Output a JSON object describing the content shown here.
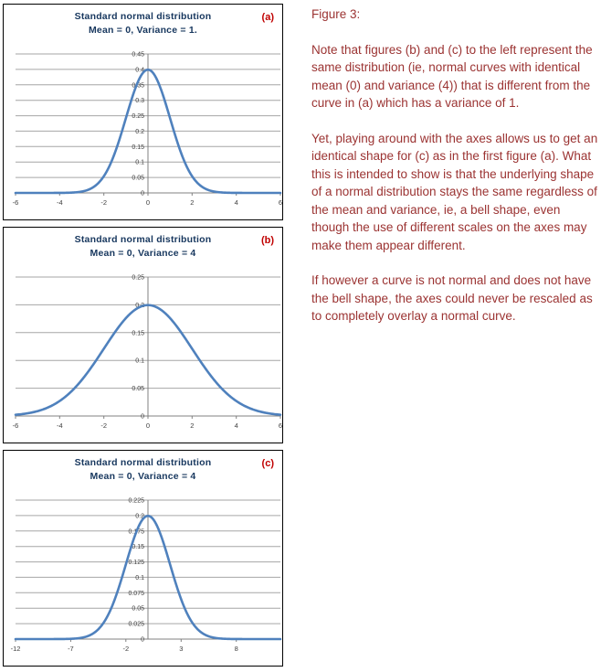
{
  "theme": {
    "background": "#ffffff",
    "panel_border_color": "#000000",
    "title_color": "#17375e",
    "panel_label_color": "#c00000",
    "annotation_color": "#9b3332",
    "curve_color": "#4f81bd",
    "grid_color": "#a6a6a6",
    "axis_color": "#808080",
    "tick_label_color": "#3f3f3f"
  },
  "chart_data": [
    {
      "type": "line",
      "panel_label": "(a)",
      "title": "Standard normal distribution",
      "subtitle": "Mean = 0, Variance = 1.",
      "curve": {
        "distribution": "normal",
        "mean": 0,
        "variance": 1
      },
      "xlim": [
        -6,
        6
      ],
      "ylim": [
        0,
        0.45
      ],
      "x_ticks": [
        -6,
        -4,
        -2,
        0,
        2,
        4,
        6
      ],
      "x_tick_labels": [
        "-6",
        "-4",
        "-2",
        "0",
        "2",
        "4",
        "6"
      ],
      "y_ticks": [
        0,
        0.05,
        0.1,
        0.15,
        0.2,
        0.25,
        0.3,
        0.35,
        0.4,
        0.45
      ],
      "y_tick_labels": [
        "0",
        "0.05",
        "0.1",
        "0.15",
        "0.2",
        "0.25",
        "0.3",
        "0.35",
        "0.4",
        "0.45"
      ],
      "grid": true,
      "legend": false,
      "peak_value": 0.399
    },
    {
      "type": "line",
      "panel_label": "(b)",
      "title": "Standard normal distribution",
      "subtitle": "Mean = 0, Variance = 4",
      "curve": {
        "distribution": "normal",
        "mean": 0,
        "variance": 4
      },
      "xlim": [
        -6,
        6
      ],
      "ylim": [
        0,
        0.25
      ],
      "x_ticks": [
        -6,
        -4,
        -2,
        0,
        2,
        4,
        6
      ],
      "x_tick_labels": [
        "-6",
        "-4",
        "-2",
        "0",
        "2",
        "4",
        "6"
      ],
      "y_ticks": [
        0,
        0.05,
        0.1,
        0.15,
        0.2,
        0.25
      ],
      "y_tick_labels": [
        "0",
        "0.05",
        "0.1",
        "0.15",
        "0.2",
        "0.25"
      ],
      "grid": true,
      "legend": false,
      "peak_value": 0.199
    },
    {
      "type": "line",
      "panel_label": "(c)",
      "title": "Standard normal distribution",
      "subtitle": "Mean = 0, Variance = 4",
      "curve": {
        "distribution": "normal",
        "mean": 0,
        "variance": 4
      },
      "xlim": [
        -12,
        12
      ],
      "ylim": [
        0,
        0.225
      ],
      "x_ticks": [
        -12,
        -7,
        -2,
        3,
        8
      ],
      "x_tick_labels": [
        "-12",
        "-7",
        "-2",
        "3",
        "8"
      ],
      "y_ticks": [
        0,
        0.025,
        0.05,
        0.075,
        0.1,
        0.125,
        0.15,
        0.175,
        0.2,
        0.225
      ],
      "y_tick_labels": [
        "0",
        "0.025",
        "0.05",
        "0.075",
        "0.1",
        "0.125",
        "0.15",
        "0.175",
        "0.2",
        "0.225"
      ],
      "grid": true,
      "legend": false,
      "peak_value": 0.199
    }
  ],
  "annotation": {
    "heading": "Figure 3:",
    "paragraphs": [
      "Note that figures (b) and (c) to the left represent the same distribution (ie, normal curves with identical mean (0) and variance (4)) that is different from the curve in (a) which has a variance of 1.",
      "Yet, playing around with the axes allows us to get an identical shape for (c) as in the first figure (a).  What this is intended to show is that the underlying shape of a normal distribution stays the same regardless of the mean and variance, ie, a bell shape, even though the use of different scales on the axes may make them appear different.",
      "If however a curve is not normal and does not have the bell shape, the axes could never be rescaled as to completely overlay a normal curve."
    ]
  }
}
